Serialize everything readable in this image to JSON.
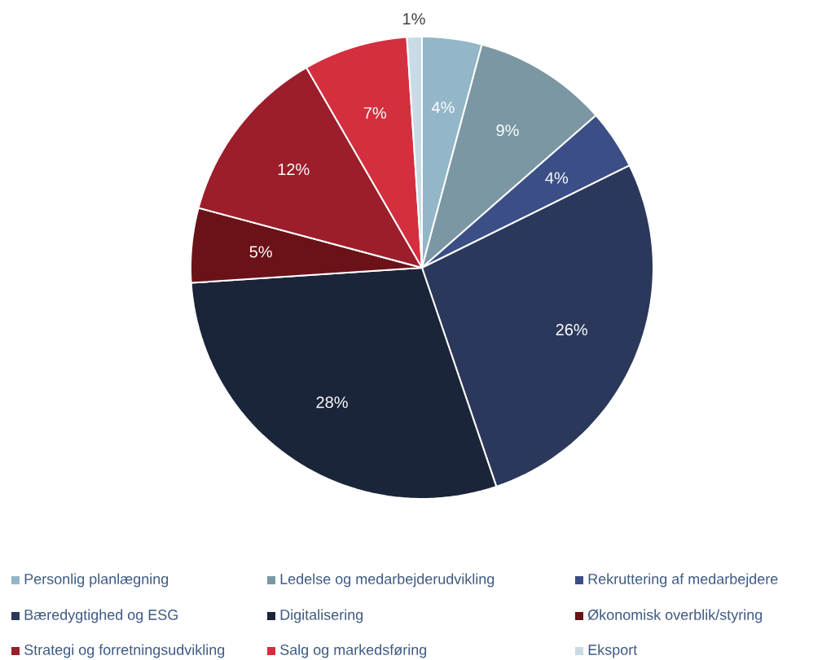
{
  "chart_data": {
    "type": "pie",
    "categories": [
      "Personlig planlægning",
      "Ledelse og medarbejderudvikling",
      "Rekruttering af medarbejdere",
      "Bæredygtighed og ESG",
      "Digitalisering",
      "Økonomisk overblik/styring",
      "Strategi og forretningsudvikling",
      "Salg og markedsføring",
      "Eksport"
    ],
    "values": [
      4,
      9,
      4,
      26,
      28,
      5,
      12,
      7,
      1
    ],
    "value_labels": [
      "4%",
      "9%",
      "4%",
      "26%",
      "28%",
      "5%",
      "12%",
      "7%",
      "1%"
    ],
    "colors": [
      "#93b6c8",
      "#7b97a3",
      "#3b4f86",
      "#2b385b",
      "#1b2539",
      "#6b1219",
      "#9c1e2b",
      "#d42f3f",
      "#c9dbe6"
    ],
    "legend": "bottom"
  }
}
